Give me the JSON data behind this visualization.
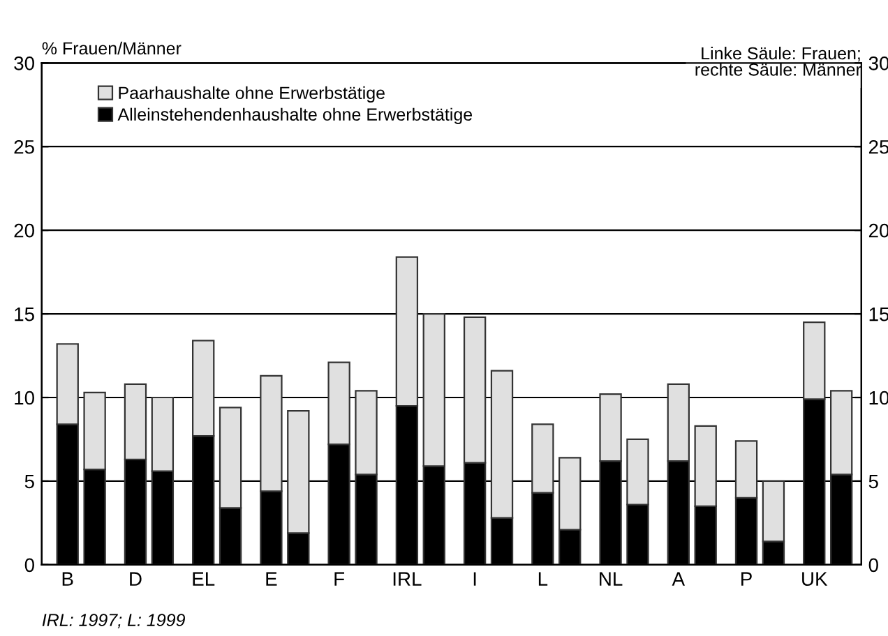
{
  "chart_data": {
    "type": "bar",
    "ylabel": "% Frauen/Männer",
    "categories": [
      "B",
      null,
      "D",
      null,
      "EL",
      null,
      "E",
      null,
      "F",
      null,
      "IRL",
      null,
      "I",
      null,
      "L",
      null,
      "NL",
      null,
      "A",
      null,
      "P",
      null,
      "UK",
      null
    ],
    "series": [
      {
        "name": "Alleinstehendenhaushalte ohne Erwerbstätige",
        "color": "#000000",
        "values": [
          8.4,
          5.7,
          6.3,
          5.6,
          7.7,
          3.4,
          4.4,
          1.9,
          7.2,
          5.4,
          9.5,
          5.9,
          6.1,
          2.8,
          4.3,
          2.1,
          6.2,
          3.6,
          6.2,
          3.5,
          4.0,
          1.4,
          9.9,
          5.4
        ]
      },
      {
        "name": "Paarhaushalte ohne Erwerbstätige",
        "color": "#e0e0e0",
        "values": [
          4.8,
          4.6,
          4.5,
          4.4,
          5.7,
          6.0,
          6.9,
          7.3,
          4.9,
          5.0,
          8.9,
          9.1,
          8.7,
          8.8,
          4.1,
          4.3,
          4.0,
          3.9,
          4.6,
          4.8,
          3.4,
          3.6,
          4.6,
          5.0
        ]
      }
    ],
    "stacked": true,
    "ylim": [
      0,
      30
    ],
    "yticks": [
      0,
      5,
      10,
      15,
      20,
      25,
      30
    ],
    "y2lim": [
      0,
      30
    ],
    "y2ticks": [
      0,
      5,
      10,
      15,
      20,
      25,
      30
    ],
    "grid": "y",
    "legend": "top left",
    "annotations": [
      "Linke Säule: Frauen;\nrechte Säule: Männer",
      "IRL: 1997; L: 1999"
    ]
  }
}
